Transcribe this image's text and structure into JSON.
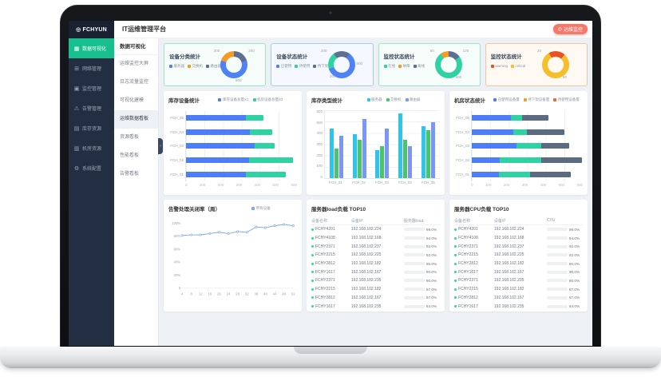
{
  "header": {
    "logo": "FCHYUN",
    "title": "IT运维管理平台",
    "monitor_button": "运维监控"
  },
  "sidebar": {
    "items": [
      {
        "label": "数据可视化",
        "icon": "data-viz-icon",
        "active": true
      },
      {
        "label": "网络管理",
        "icon": "network-icon",
        "active": false
      },
      {
        "label": "监控管理",
        "icon": "monitor-icon",
        "active": false
      },
      {
        "label": "告警管理",
        "icon": "alert-icon",
        "active": false
      },
      {
        "label": "库存资源",
        "icon": "inventory-icon",
        "active": false
      },
      {
        "label": "机房资源",
        "icon": "server-room-icon",
        "active": false
      },
      {
        "label": "系统配置",
        "icon": "settings-icon",
        "active": false
      }
    ]
  },
  "submenu": {
    "header": "数据可视化",
    "items": [
      {
        "label": "运维监控大屏",
        "active": false
      },
      {
        "label": "日志流量监控",
        "active": false
      },
      {
        "label": "可视化建模",
        "active": false
      },
      {
        "label": "运维数据看板",
        "active": true
      },
      {
        "label": "资源看板",
        "active": false
      },
      {
        "label": "性能看板",
        "active": false
      },
      {
        "label": "告警看板",
        "active": false
      }
    ]
  },
  "stat_cards": [
    {
      "title": "设备分类统计",
      "border": "#9fe3c3",
      "bg": "#f6fcf9",
      "legend": [
        {
          "label": "服务器",
          "color": "#4f81f7"
        },
        {
          "label": "交换机",
          "color": "#f59a23"
        },
        {
          "label": "路由器",
          "color": "#5d7092"
        }
      ],
      "donut": {
        "type": "pie",
        "start": 0,
        "segments": [
          {
            "label": "路由器",
            "value": 200,
            "pct": 20,
            "color": "#5d7092"
          },
          {
            "label": "服务器",
            "value": 600,
            "pct": 60,
            "color": "#4f81f7"
          },
          {
            "label": "交换机",
            "value": 200,
            "pct": 20,
            "color": "#f59a23"
          }
        ],
        "labels": [
          {
            "text": "200",
            "pos": "tl"
          },
          {
            "text": "200",
            "pos": "tr"
          },
          {
            "text": "600",
            "pos": "b"
          }
        ]
      }
    },
    {
      "title": "设备状态统计",
      "border": "#a6c8f3",
      "bg": "#f5f9ff",
      "legend": [
        {
          "label": "已使用",
          "color": "#4f81f7"
        },
        {
          "label": "待使用",
          "color": "#2fd3a3"
        },
        {
          "label": "待下架",
          "color": "#5d7092"
        }
      ],
      "donut": {
        "type": "pie",
        "start": -36,
        "segments": [
          {
            "label": "待下架",
            "value": 200,
            "pct": 20,
            "color": "#5d7092"
          },
          {
            "label": "已使用",
            "value": 600,
            "pct": 60,
            "color": "#4f81f7"
          },
          {
            "label": "待使用",
            "value": 200,
            "pct": 20,
            "color": "#2fd3a3"
          }
        ],
        "labels": [
          {
            "text": "200",
            "pos": "tl"
          },
          {
            "text": "600",
            "pos": "r"
          },
          {
            "text": "200",
            "pos": "bl"
          }
        ]
      }
    },
    {
      "title": "监控状态统计",
      "border": "#9fe3c3",
      "bg": "#f6fcf9",
      "legend": [
        {
          "label": "在线",
          "color": "#2fd3a3"
        },
        {
          "label": "故障",
          "color": "#f59a23"
        },
        {
          "label": "离线",
          "color": "#5d7092"
        }
      ],
      "donut": {
        "type": "pie",
        "start": 0,
        "segments": [
          {
            "label": "离线",
            "value": 120,
            "pct": 15,
            "color": "#5d7092"
          },
          {
            "label": "在线",
            "value": 600,
            "pct": 75,
            "color": "#2fd3a3"
          },
          {
            "label": "故障",
            "value": 80,
            "pct": 10,
            "color": "#f59a23"
          }
        ],
        "labels": [
          {
            "text": "80",
            "pos": "tl"
          },
          {
            "text": "120",
            "pos": "tr"
          },
          {
            "text": "600",
            "pos": "br"
          }
        ]
      }
    },
    {
      "title": "监控状态统计",
      "border": "#f6c3a4",
      "bg": "#fff9f4",
      "legend": [
        {
          "label": "warning",
          "color": "#e8531f"
        },
        {
          "label": "critical",
          "color": "#f7bd2b"
        }
      ],
      "donut": {
        "type": "pie",
        "start": -30,
        "segments": [
          {
            "label": "warning",
            "value": 20,
            "pct": 20,
            "color": "#e8531f"
          },
          {
            "label": "critical",
            "value": 80,
            "pct": 80,
            "color": "#f7bd2b"
          }
        ],
        "labels": [
          {
            "text": "20",
            "pos": "tl"
          },
          {
            "text": "80",
            "pos": "br"
          }
        ]
      }
    }
  ],
  "mid_charts": [
    {
      "title": "库存设备统计",
      "type": "bar-horizontal-stacked",
      "legend": [
        {
          "label": "库存设备总量X1",
          "color": "#4e7df9"
        },
        {
          "label": "机房设备总量X2",
          "color": "#2fd3a3"
        }
      ],
      "categories": [
        "FCH_05",
        "FCH_04",
        "FCH_03",
        "FCH_02",
        "FCH_01"
      ],
      "series": [
        {
          "name": "库存设备总量X1",
          "color": "#4e7df9",
          "values": [
            325,
            345,
            370,
            340,
            325
          ]
        },
        {
          "name": "机房设备总量X2",
          "color": "#2fd3a3",
          "values": [
            95,
            120,
            110,
            240,
            215
          ]
        }
      ],
      "xmax": 600,
      "xticks": [
        "0",
        "100",
        "200",
        "300",
        "400",
        "500",
        "600"
      ]
    },
    {
      "title": "库存类型统计",
      "type": "bar-vertical-grouped",
      "legend": [
        {
          "label": "服务器",
          "color": "#2bc5ee"
        },
        {
          "label": "交换机",
          "color": "#49c66b"
        },
        {
          "label": "路由器",
          "color": "#7b96f5"
        }
      ],
      "categories": [
        "FCH_01",
        "FCH_02",
        "FCH_03",
        "FCH_04",
        "FCH_05"
      ],
      "series": [
        {
          "name": "服务器",
          "color": "#2bc5ee",
          "values": [
            435,
            390,
            250,
            575,
            460
          ]
        },
        {
          "name": "交换机",
          "color": "#49c66b",
          "values": [
            260,
            340,
            285,
            340,
            425
          ]
        },
        {
          "name": "路由器",
          "color": "#7b96f5",
          "values": [
            375,
            525,
            435,
            285,
            495
          ]
        }
      ],
      "ymax": 600,
      "yticks": [
        "600",
        "500",
        "400",
        "300",
        "200",
        "100",
        "0"
      ]
    },
    {
      "title": "机房状态统计",
      "type": "bar-horizontal-stacked",
      "legend": [
        {
          "label": "已使用设备量",
          "color": "#4e7df9"
        },
        {
          "label": "待下架设备量",
          "color": "#f59a23"
        },
        {
          "label": "待使用设备量",
          "color": "#f1663f"
        }
      ],
      "categories": [
        "FCH_05",
        "FCH_04",
        "FCH_03",
        "FCH_02",
        "FCH_01"
      ],
      "series": [
        {
          "name": "已使用设备量",
          "color": "#4e7df9",
          "values": [
            210,
            225,
            240,
            150,
            145
          ]
        },
        {
          "name": "待下架设备量",
          "color": "#2fd3a3",
          "values": [
            60,
            75,
            135,
            225,
            170
          ]
        },
        {
          "name": "待使用设备量",
          "color": "#5d6b82",
          "values": [
            145,
            200,
            150,
            220,
            220
          ]
        }
      ],
      "xmax": 600,
      "xticks": [
        "0",
        "100",
        "200",
        "300",
        "400",
        "500",
        "600"
      ]
    }
  ],
  "line_chart": {
    "title": "告警处理关闭率（周）",
    "type": "line",
    "legend": [
      {
        "label": "所有设备",
        "color": "#7aa7f0"
      }
    ],
    "x": [
      "4",
      "8",
      "12",
      "16",
      "20",
      "24",
      "28",
      "32",
      "36",
      "40",
      "44",
      "48",
      "52"
    ],
    "values": [
      81,
      82,
      82,
      84,
      86,
      84,
      87,
      86,
      94,
      93,
      96,
      98,
      96
    ],
    "yticks": [
      "100%",
      "80%",
      "60%",
      "40%",
      "20%",
      "0"
    ],
    "ymax": 100
  },
  "tables": [
    {
      "title": "服务器load负载 TOP10",
      "columns": [
        "设备名称",
        "设备IP",
        "服务器load"
      ],
      "bar_color": "#33d3a5",
      "rows": [
        {
          "name": "FCHY4201",
          "ip": "192.168.102.224",
          "load": "99.0%"
        },
        {
          "name": "FCHY4108",
          "ip": "192.168.102.168",
          "load": "94.0%"
        },
        {
          "name": "FCHY2371",
          "ip": "192.168.102.237",
          "load": "92.0%"
        },
        {
          "name": "FCHY2215",
          "ip": "192.168.102.225",
          "load": "92.0%"
        },
        {
          "name": "FCHY2812",
          "ip": "192.168.102.182",
          "load": "90.0%"
        },
        {
          "name": "FCHY1617",
          "ip": "192.168.102.167",
          "load": "90.0%"
        },
        {
          "name": "FCHY2371",
          "ip": "192.168.102.235",
          "load": "90.0%"
        },
        {
          "name": "FCHY2215",
          "ip": "192.168.102.182",
          "load": "87.0%"
        },
        {
          "name": "FCHY2812",
          "ip": "192.168.102.167",
          "load": "87.0%"
        },
        {
          "name": "FCHY1617",
          "ip": "192.168.102.235",
          "load": "84.0%"
        }
      ]
    },
    {
      "title": "服务器CPU负载 TOP10",
      "columns": [
        "设备名称",
        "设备IP",
        "CPU"
      ],
      "bar_color": "#33d3a5",
      "rows": [
        {
          "name": "FCHY4201",
          "ip": "192.168.102.224",
          "load": "99.0%"
        },
        {
          "name": "FCHY4108",
          "ip": "192.168.102.168",
          "load": "94.0%"
        },
        {
          "name": "FCHY2371",
          "ip": "192.168.102.237",
          "load": "92.0%"
        },
        {
          "name": "FCHY2215",
          "ip": "192.168.102.225",
          "load": "92.0%"
        },
        {
          "name": "FCHY2812",
          "ip": "192.168.102.182",
          "load": "90.0%"
        },
        {
          "name": "FCHY1617",
          "ip": "192.168.102.167",
          "load": "90.0%"
        },
        {
          "name": "FCHY2371",
          "ip": "192.168.102.235",
          "load": "90.0%"
        },
        {
          "name": "FCHY2215",
          "ip": "192.168.102.182",
          "load": "87.0%"
        },
        {
          "name": "FCHY2812",
          "ip": "192.168.102.167",
          "load": "87.0%"
        },
        {
          "name": "FCHY1617",
          "ip": "192.168.102.235",
          "load": "84.0%"
        }
      ]
    }
  ],
  "colors": {
    "accent_green": "#17bf8f",
    "sidebar_bg": "#242e42",
    "logo_bg": "#1a2130",
    "content_bg": "#edf0f4",
    "monitor_button_bg": "#f3796b"
  }
}
